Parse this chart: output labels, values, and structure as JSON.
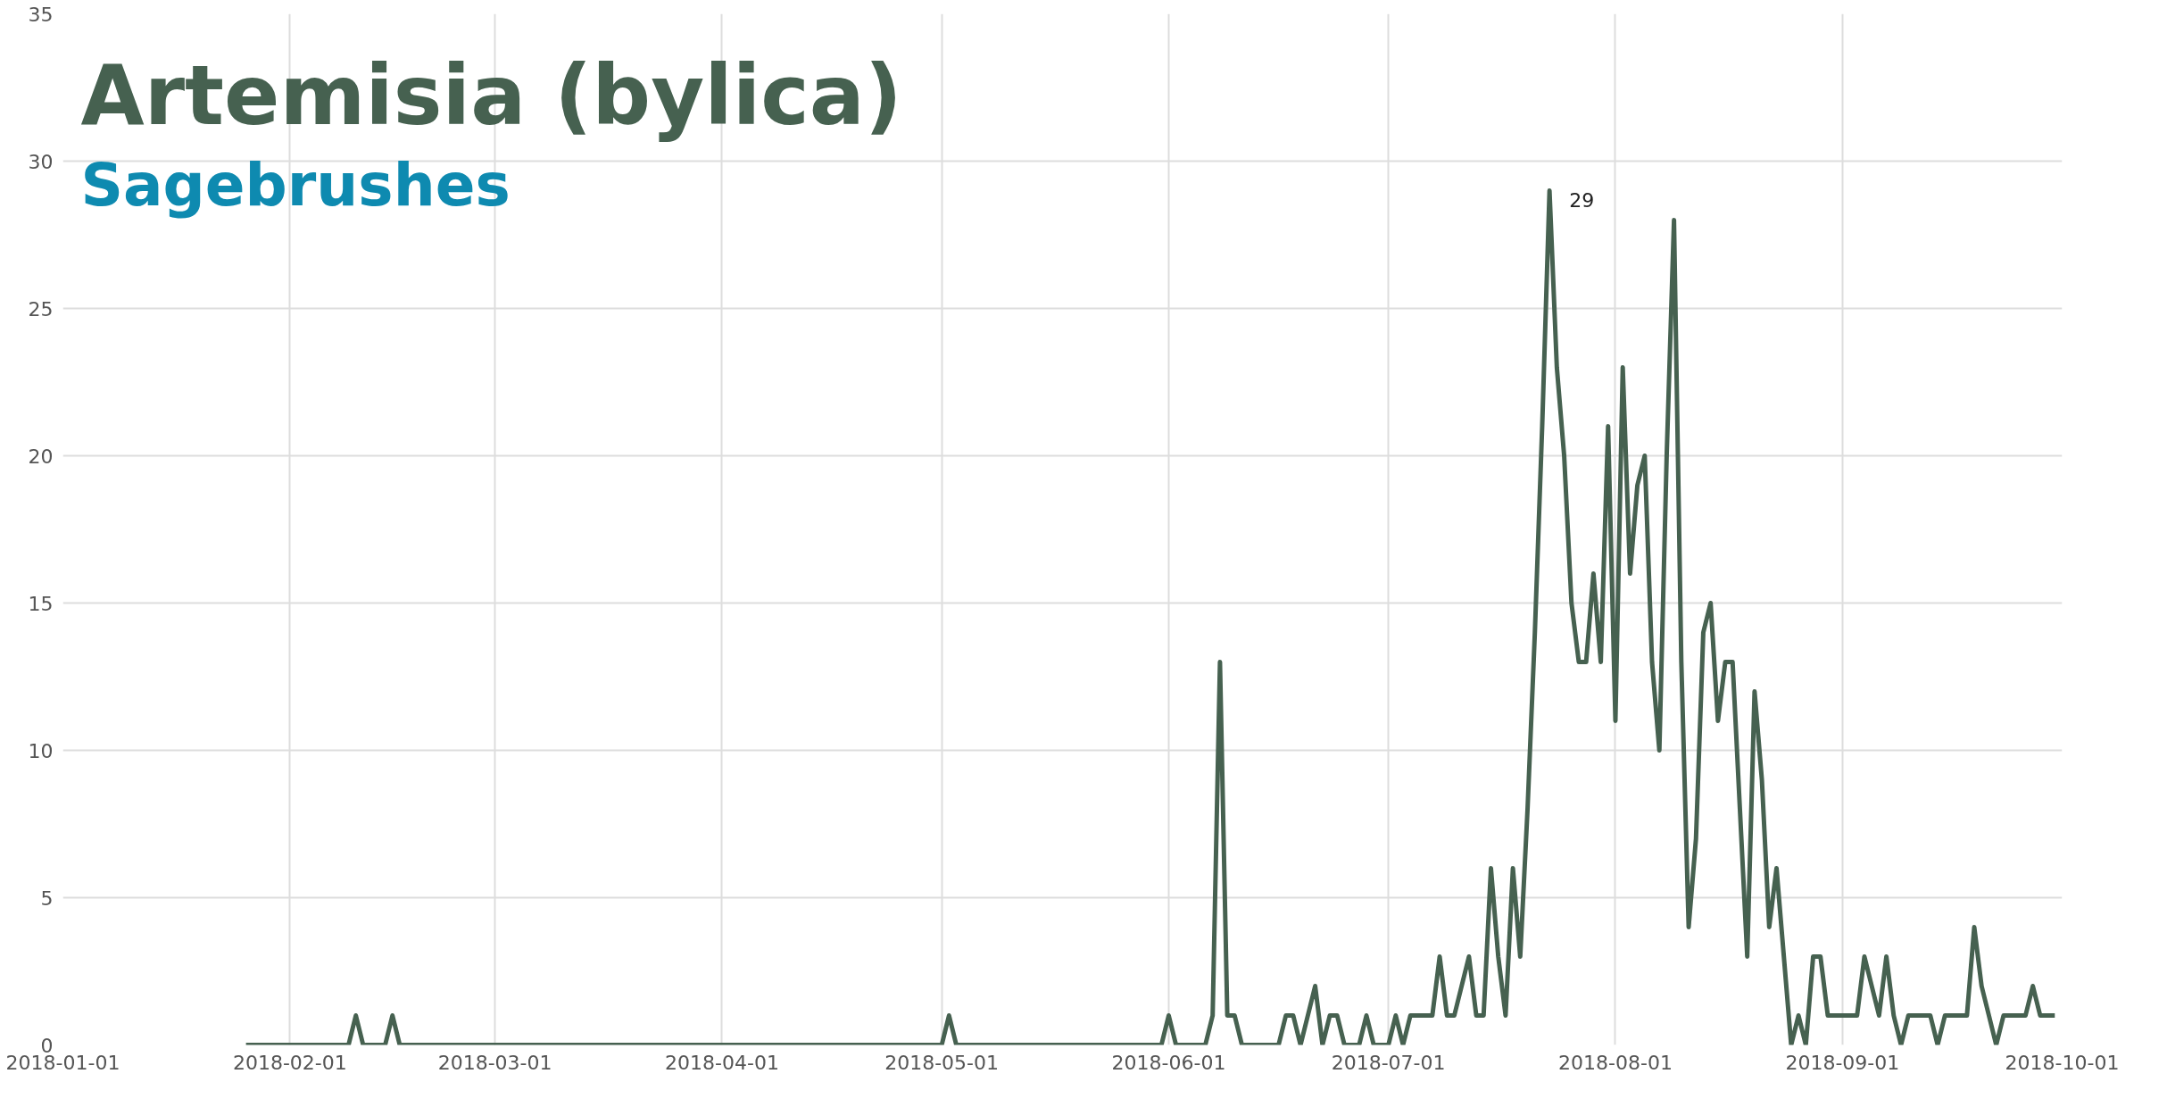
{
  "chart_data": {
    "type": "line",
    "title": "Artemisia (bylica)",
    "subtitle": "Sagebrushes",
    "x": [
      "2018-01-26",
      "2018-02-09",
      "2018-02-10",
      "2018-02-11",
      "2018-02-14",
      "2018-02-15",
      "2018-02-16",
      "2018-05-01",
      "2018-05-02",
      "2018-05-03",
      "2018-05-31",
      "2018-06-01",
      "2018-06-02",
      "2018-06-06",
      "2018-06-07",
      "2018-06-08",
      "2018-06-09",
      "2018-06-10",
      "2018-06-11",
      "2018-06-16",
      "2018-06-17",
      "2018-06-18",
      "2018-06-19",
      "2018-06-20",
      "2018-06-21",
      "2018-06-22",
      "2018-06-23",
      "2018-06-24",
      "2018-06-25",
      "2018-06-27",
      "2018-06-28",
      "2018-06-29",
      "2018-06-30",
      "2018-07-01",
      "2018-07-02",
      "2018-07-03",
      "2018-07-04",
      "2018-07-07",
      "2018-07-08",
      "2018-07-09",
      "2018-07-10",
      "2018-07-11",
      "2018-07-12",
      "2018-07-13",
      "2018-07-14",
      "2018-07-15",
      "2018-07-16",
      "2018-07-17",
      "2018-07-18",
      "2018-07-19",
      "2018-07-20",
      "2018-07-21",
      "2018-07-22",
      "2018-07-23",
      "2018-07-24",
      "2018-07-25",
      "2018-07-26",
      "2018-07-27",
      "2018-07-28",
      "2018-07-29",
      "2018-07-30",
      "2018-07-31",
      "2018-08-01",
      "2018-08-02",
      "2018-08-03",
      "2018-08-04",
      "2018-08-05",
      "2018-08-06",
      "2018-08-07",
      "2018-08-08",
      "2018-08-09",
      "2018-08-10",
      "2018-08-11",
      "2018-08-12",
      "2018-08-13",
      "2018-08-14",
      "2018-08-15",
      "2018-08-16",
      "2018-08-17",
      "2018-08-18",
      "2018-08-19",
      "2018-08-20",
      "2018-08-21",
      "2018-08-22",
      "2018-08-23",
      "2018-08-24",
      "2018-08-25",
      "2018-08-26",
      "2018-08-27",
      "2018-08-28",
      "2018-08-29",
      "2018-08-30",
      "2018-09-03",
      "2018-09-04",
      "2018-09-05",
      "2018-09-06",
      "2018-09-07",
      "2018-09-08",
      "2018-09-09",
      "2018-09-10",
      "2018-09-13",
      "2018-09-14",
      "2018-09-15",
      "2018-09-18",
      "2018-09-19",
      "2018-09-20",
      "2018-09-21",
      "2018-09-22",
      "2018-09-23",
      "2018-09-26",
      "2018-09-27",
      "2018-09-28",
      "2018-09-30"
    ],
    "series": [
      {
        "color": "#466150",
        "values": [
          0,
          0,
          1,
          0,
          0,
          1,
          0,
          0,
          1,
          0,
          0,
          1,
          0,
          0,
          1,
          13,
          1,
          1,
          0,
          0,
          1,
          1,
          0,
          1,
          2,
          0,
          1,
          1,
          0,
          0,
          1,
          0,
          0,
          0,
          1,
          0,
          1,
          1,
          3,
          1,
          1,
          2,
          3,
          1,
          1,
          6,
          3,
          1,
          6,
          3,
          8,
          14,
          21,
          29,
          23,
          20,
          15,
          13,
          13,
          16,
          13,
          21,
          11,
          23,
          16,
          19,
          20,
          13,
          10,
          20,
          28,
          13,
          4,
          7,
          14,
          15,
          11,
          13,
          13,
          8,
          3,
          12,
          9,
          4,
          6,
          3,
          0,
          1,
          0,
          3,
          3,
          1,
          1,
          3,
          2,
          1,
          3,
          1,
          0,
          1,
          1,
          0,
          1,
          1,
          4,
          2,
          1,
          0,
          1,
          1,
          2,
          1,
          1
        ]
      }
    ],
    "annotations": [
      {
        "text": "29",
        "x": "2018-07-23",
        "y": 29
      }
    ],
    "xlim": [
      "2018-01-01",
      "2018-10-01"
    ],
    "xticks": [
      "2018-01-01",
      "2018-02-01",
      "2018-03-01",
      "2018-04-01",
      "2018-05-01",
      "2018-06-01",
      "2018-07-01",
      "2018-08-01",
      "2018-09-01",
      "2018-10-01"
    ],
    "ylim": [
      0,
      35
    ],
    "yticks": [
      0,
      5,
      10,
      15,
      20,
      25,
      30,
      35
    ],
    "grid": true,
    "marker": "none",
    "line_style": "solid"
  }
}
